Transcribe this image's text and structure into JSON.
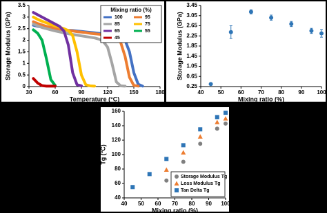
{
  "chart_data": [
    {
      "type": "line",
      "xlabel": "Temperature (°C)",
      "ylabel": "Storage Modulus (GPa)",
      "legend_title": "Mixing ratio (%)",
      "x": [
        35,
        40,
        45,
        50,
        55,
        60,
        65,
        70,
        75,
        80,
        85,
        90,
        95,
        100,
        105,
        110,
        115,
        120,
        125,
        130,
        135,
        140,
        145,
        150,
        155,
        160
      ],
      "xlim": [
        30,
        180
      ],
      "xticks": [
        30,
        60,
        90,
        120,
        150,
        180
      ],
      "ylim": [
        0,
        3.5
      ],
      "yticks": [
        0,
        0.5,
        1,
        1.5,
        2,
        2.5,
        3,
        3.5
      ],
      "series": [
        {
          "name": "100",
          "color": "#4472c4",
          "values": [
            2.65,
            2.6,
            2.57,
            2.55,
            2.53,
            2.5,
            2.48,
            2.45,
            2.43,
            2.42,
            2.4,
            2.38,
            2.36,
            2.34,
            2.32,
            2.3,
            2.28,
            2.26,
            2.24,
            2.2,
            2.15,
            2.0,
            1.5,
            0.6,
            0.1,
            0.02
          ]
        },
        {
          "name": "95",
          "color": "#ed7d31",
          "values": [
            2.8,
            2.72,
            2.66,
            2.6,
            2.56,
            2.52,
            2.48,
            2.45,
            2.42,
            2.4,
            2.37,
            2.35,
            2.33,
            2.3,
            2.28,
            2.26,
            2.24,
            2.22,
            2.18,
            2.1,
            1.9,
            1.3,
            0.4,
            0.05,
            0.02,
            null
          ]
        },
        {
          "name": "85",
          "color": "#a5a5a5",
          "values": [
            2.7,
            2.62,
            2.55,
            2.5,
            2.45,
            2.4,
            2.36,
            2.32,
            2.28,
            2.25,
            2.22,
            2.19,
            2.16,
            2.13,
            2.1,
            2.05,
            1.95,
            1.7,
            1.0,
            0.2,
            0.03,
            0.02,
            null,
            null,
            null,
            null
          ]
        },
        {
          "name": "75",
          "color": "#ffc000",
          "values": [
            3.0,
            2.9,
            2.82,
            2.75,
            2.68,
            2.62,
            2.56,
            2.5,
            2.42,
            2.2,
            1.5,
            0.5,
            0.08,
            0.03,
            0.02,
            null,
            null,
            null,
            null,
            null,
            null,
            null,
            null,
            null,
            null,
            null
          ]
        },
        {
          "name": "65",
          "color": "#7030a0",
          "values": [
            3.2,
            3.1,
            3.0,
            2.9,
            2.8,
            2.7,
            2.6,
            2.4,
            1.8,
            0.6,
            0.08,
            0.03,
            null,
            null,
            null,
            null,
            null,
            null,
            null,
            null,
            null,
            null,
            null,
            null,
            null,
            null
          ]
        },
        {
          "name": "55",
          "color": "#00b050",
          "values": [
            2.45,
            2.3,
            2.0,
            1.2,
            0.3,
            0.05,
            null,
            null,
            null,
            null,
            null,
            null,
            null,
            null,
            null,
            null,
            null,
            null,
            null,
            null,
            null,
            null,
            null,
            null,
            null,
            null
          ]
        },
        {
          "name": "45",
          "color": "#c00000",
          "values": [
            0.35,
            0.15,
            0.04,
            0.02,
            0.02,
            0.02,
            null,
            null,
            null,
            null,
            null,
            null,
            null,
            null,
            null,
            null,
            null,
            null,
            null,
            null,
            null,
            null,
            null,
            null,
            null,
            null
          ]
        }
      ]
    },
    {
      "type": "errorbar",
      "xlabel": "Mixing ratio (%)",
      "ylabel": "Storage Modulus (GPa)",
      "x": [
        45,
        55,
        65,
        75,
        85,
        95,
        100
      ],
      "xlim": [
        40,
        100
      ],
      "xticks": [
        40,
        50,
        60,
        70,
        80,
        90,
        100
      ],
      "ylim": [
        0.25,
        3.45
      ],
      "yticks": [
        0.25,
        0.65,
        1.05,
        1.45,
        1.85,
        2.25,
        2.65,
        3.05,
        3.45
      ],
      "series": [
        {
          "color": "#2e75b6",
          "marker": "circle",
          "values": [
            0.35,
            2.4,
            3.2,
            2.97,
            2.72,
            2.45,
            2.35
          ],
          "errors": [
            0.05,
            0.25,
            0.08,
            0.1,
            0.1,
            0.1,
            0.15
          ]
        }
      ]
    },
    {
      "type": "scatter",
      "xlabel": "Mixing ratio (%)",
      "ylabel": "Tg (°C)",
      "x": [
        45,
        55,
        65,
        75,
        85,
        95,
        100
      ],
      "xlim": [
        40,
        100
      ],
      "xticks": [
        40,
        50,
        60,
        70,
        80,
        90,
        100
      ],
      "ylim": [
        40,
        160
      ],
      "yticks": [
        40,
        60,
        80,
        100,
        120,
        140,
        160
      ],
      "series": [
        {
          "name": "Storage Modulus Tg",
          "color": "#7f7f7f",
          "marker": "circle",
          "values": [
            null,
            null,
            64,
            90,
            115,
            136,
            143
          ]
        },
        {
          "name": "Loss Modulus Tg",
          "color": "#ed7d31",
          "marker": "triangle",
          "values": [
            null,
            null,
            79,
            103,
            125,
            145,
            150
          ]
        },
        {
          "name": "Tan Delta Tg",
          "color": "#2e75b6",
          "marker": "square",
          "values": [
            55,
            73,
            94,
            113,
            135,
            152,
            158
          ]
        }
      ]
    }
  ]
}
